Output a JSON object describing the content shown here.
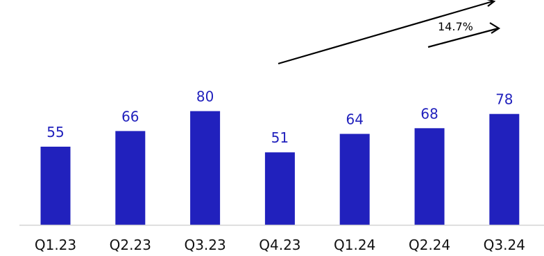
{
  "chart_data": {
    "type": "bar",
    "categories": [
      "Q1.23",
      "Q2.23",
      "Q3.23",
      "Q4.23",
      "Q1.24",
      "Q2.24",
      "Q3.24"
    ],
    "values": [
      55,
      66,
      80,
      51,
      64,
      68,
      78
    ],
    "data_labels": [
      "55",
      "66",
      "80",
      "51",
      "64",
      "68",
      "78"
    ],
    "title": "",
    "xlabel": "",
    "ylabel": "",
    "ylim": [
      0,
      100
    ],
    "grid": false,
    "bar_color": "#2121bd",
    "label_color": "#2121bd",
    "annotations": [
      {
        "kind": "arrow",
        "from_category": "Q4.23",
        "to_category": "Q3.24",
        "text": ""
      },
      {
        "kind": "arrow",
        "from_category": "Q2.24",
        "to_category": "Q3.24",
        "text": "14.7%"
      }
    ]
  }
}
